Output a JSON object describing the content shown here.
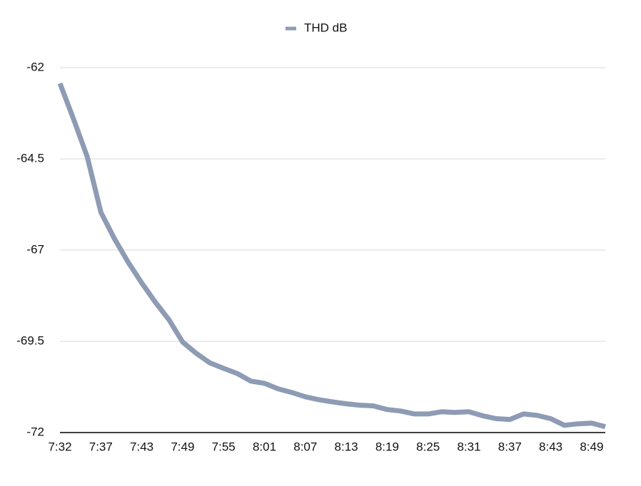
{
  "chart_data": {
    "type": "line",
    "categories": [
      "7:32",
      null,
      null,
      "7:37",
      null,
      null,
      "7:43",
      null,
      null,
      "7:49",
      null,
      null,
      "7:55",
      null,
      null,
      "8:01",
      null,
      null,
      "8:07",
      null,
      null,
      "8:13",
      null,
      null,
      "8:19",
      null,
      null,
      "8:25",
      null,
      null,
      "8:31",
      null,
      null,
      "8:37",
      null,
      null,
      "8:43",
      null,
      null,
      "8:49",
      null
    ],
    "series": [
      {
        "name": "THD dB",
        "color": "#8e9bb4",
        "values": [
          -62.43,
          -63.41,
          -64.44,
          -65.96,
          -66.69,
          -67.33,
          -67.9,
          -68.43,
          -68.91,
          -69.52,
          -69.83,
          -70.09,
          -70.24,
          -70.38,
          -70.59,
          -70.65,
          -70.8,
          -70.9,
          -71.02,
          -71.1,
          -71.16,
          -71.21,
          -71.25,
          -71.27,
          -71.37,
          -71.41,
          -71.49,
          -71.49,
          -71.43,
          -71.45,
          -71.43,
          -71.54,
          -71.62,
          -71.64,
          -71.49,
          -71.53,
          -71.62,
          -71.8,
          -71.76,
          -71.74,
          -71.84
        ]
      }
    ],
    "ylim": [
      -72,
      -62
    ],
    "yticks": [
      -72,
      -69.5,
      -67,
      -64.5,
      -62
    ],
    "grid": true,
    "legend": "top"
  }
}
